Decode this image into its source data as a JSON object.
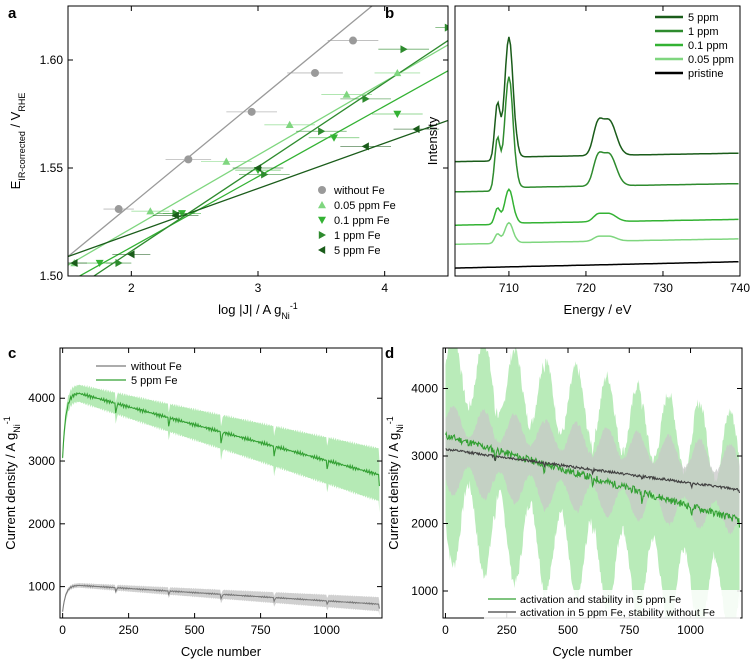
{
  "figure": {
    "panels": [
      {
        "letter": "a",
        "xlabel": "log |J| / A g",
        "xlabel_sub": "Ni",
        "xlabel_sup": "-1",
        "ylabel": "E",
        "ylabel_sub": "IR-corrected",
        "ylabel_tail": " / V",
        "ylabel_sub2": "RHE"
      },
      {
        "letter": "b",
        "xlabel": "Energy / eV",
        "ylabel": "Intensity"
      },
      {
        "letter": "c",
        "xlabel": "Cycle number",
        "ylabel": "Current density / A g",
        "ylabel_sub": "Ni",
        "ylabel_sup": "-1"
      },
      {
        "letter": "d",
        "xlabel": "Cycle number",
        "ylabel": "Current density / A g",
        "ylabel_sub": "Ni",
        "ylabel_sup": "-1"
      }
    ]
  },
  "colors": {
    "gray": "#9a9a9a",
    "light_green": "#7fd67f",
    "green": "#33b233",
    "mid_green": "#2e8b2e",
    "dark_green": "#1a5c1a",
    "black": "#000000",
    "band_green": "#a8e6a8",
    "band_gray": "#c8c8c8"
  },
  "chart_data": [
    {
      "type": "scatter",
      "title": "a",
      "xlim": [
        1.5,
        4.5
      ],
      "ylim": [
        1.5,
        1.625
      ],
      "xticks": [
        2,
        3,
        4
      ],
      "yticks": [
        1.5,
        1.55,
        1.6
      ],
      "legend_position": "bottom-right",
      "series": [
        {
          "name": "without Fe",
          "marker": "circle",
          "color": "#9a9a9a",
          "x": [
            1.9,
            2.45,
            2.95,
            3.45,
            3.75
          ],
          "y": [
            1.531,
            1.554,
            1.576,
            1.594,
            1.609
          ],
          "xerr": [
            0.12,
            0.18,
            0.2,
            0.22,
            0.2
          ],
          "fit": [
            [
              1.5,
              1.509
            ],
            [
              3.9,
              1.625
            ]
          ]
        },
        {
          "name": "0.05 ppm Fe",
          "marker": "triangle-up",
          "color": "#7fd67f",
          "x": [
            1.55,
            2.15,
            2.75,
            3.25,
            3.7,
            4.1
          ],
          "y": [
            1.506,
            1.53,
            1.553,
            1.57,
            1.584,
            1.594
          ],
          "xerr": [
            0.1,
            0.15,
            0.2,
            0.2,
            0.2,
            0.18
          ],
          "fit": [
            [
              1.5,
              1.505
            ],
            [
              4.5,
              1.607
            ]
          ]
        },
        {
          "name": "0.1 ppm Fe",
          "marker": "triangle-down",
          "color": "#33b233",
          "x": [
            1.75,
            2.4,
            3.0,
            3.6,
            4.1
          ],
          "y": [
            1.506,
            1.529,
            1.549,
            1.564,
            1.575
          ],
          "xerr": [
            0.1,
            0.15,
            0.18,
            0.2,
            0.2
          ],
          "fit": [
            [
              1.5,
              1.497
            ],
            [
              4.5,
              1.595
            ]
          ]
        },
        {
          "name": "1 ppm Fe",
          "marker": "triangle-right",
          "color": "#2e8b2e",
          "x": [
            1.9,
            2.35,
            3.05,
            3.5,
            3.85,
            4.15,
            4.5
          ],
          "y": [
            1.506,
            1.529,
            1.547,
            1.567,
            1.582,
            1.605,
            1.615
          ],
          "xerr": [
            0.1,
            0.15,
            0.2,
            0.2,
            0.2,
            0.2,
            0.1
          ],
          "fit": [
            [
              1.5,
              1.492
            ],
            [
              4.5,
              1.609
            ]
          ]
        },
        {
          "name": "5 ppm Fe",
          "marker": "triangle-left",
          "color": "#1a5c1a",
          "x": [
            1.55,
            2.0,
            2.35,
            3.0,
            3.85,
            4.25
          ],
          "y": [
            1.506,
            1.51,
            1.528,
            1.55,
            1.56,
            1.568
          ],
          "xerr": [
            0.1,
            0.15,
            0.18,
            0.2,
            0.2,
            0.18
          ],
          "fit": [
            [
              1.5,
              1.509
            ],
            [
              4.5,
              1.572
            ]
          ]
        }
      ]
    },
    {
      "type": "line",
      "title": "b",
      "xlim": [
        703,
        740
      ],
      "xticks": [
        710,
        720,
        730,
        740
      ],
      "legend_position": "top-right",
      "series": [
        {
          "name": "5 ppm",
          "color": "#1a5c1a",
          "offset": 0.72,
          "peak_l3": 0.78,
          "peak_l2": 0.22
        },
        {
          "name": "1 ppm",
          "color": "#2e8b2e",
          "offset": 0.53,
          "peak_l3": 0.72,
          "peak_l2": 0.2
        },
        {
          "name": "0.1 ppm",
          "color": "#33b233",
          "offset": 0.32,
          "peak_l3": 0.22,
          "peak_l2": 0.05
        },
        {
          "name": "0.05 ppm",
          "color": "#7fd67f",
          "offset": 0.2,
          "peak_l3": 0.13,
          "peak_l2": 0.03
        },
        {
          "name": "pristine",
          "color": "#000000",
          "offset": 0.05,
          "peak_l3": 0.0,
          "peak_l2": 0.0
        }
      ]
    },
    {
      "type": "line",
      "title": "c",
      "xlim": [
        -10,
        1210
      ],
      "ylim": [
        500,
        4800
      ],
      "xticks": [
        0,
        250,
        500,
        750,
        1000
      ],
      "yticks": [
        1000,
        2000,
        3000,
        4000
      ],
      "legend_position": "top-left",
      "series": [
        {
          "name": "without Fe",
          "color": "#7a7a7a",
          "band": "#c8c8c8",
          "start": 600,
          "peak": 1020,
          "end": 720,
          "band_width": 80,
          "drop": 70
        },
        {
          "name": "5 ppm Fe",
          "color": "#33a033",
          "band": "#a8e6a8",
          "start": 3050,
          "peak": 4080,
          "end": 2780,
          "band_width": 300,
          "drop": 180
        }
      ]
    },
    {
      "type": "line",
      "title": "d",
      "xlim": [
        -10,
        1210
      ],
      "ylim": [
        600,
        4600
      ],
      "xticks": [
        0,
        250,
        500,
        750,
        1000
      ],
      "yticks": [
        1000,
        2000,
        3000,
        4000
      ],
      "legend_position": "bottom-right",
      "series": [
        {
          "name": "activation and stability in 5 ppm Fe",
          "color": "#33a033",
          "band": "#a8e6a8",
          "start": 3300,
          "end": 2050,
          "band_width": 1050,
          "noise": 180
        },
        {
          "name": "activation in 5 ppm Fe, stability without Fe",
          "color": "#404040",
          "band": "#c8c8c8",
          "start": 3100,
          "end": 2500,
          "band_width": 550,
          "noise": 60
        }
      ]
    }
  ]
}
